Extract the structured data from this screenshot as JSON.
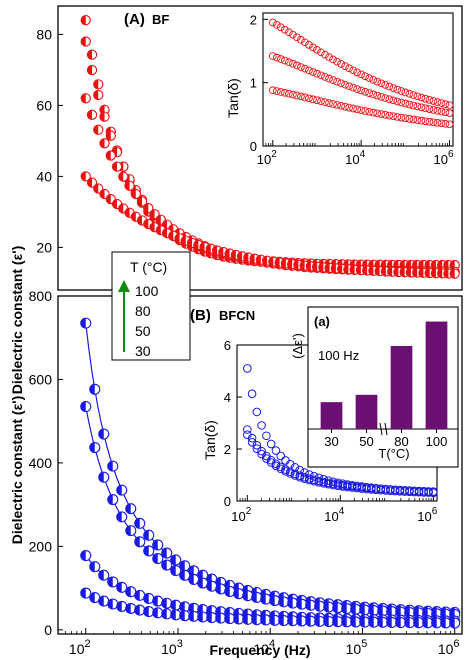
{
  "colors": {
    "red": "#ee1111",
    "blue": "#1a1ae6",
    "purple": "#6b0f73",
    "green": "#0e8a0e",
    "axis": "#000000"
  },
  "labels": {
    "panel_a": "(A)",
    "panel_a_name": "BF",
    "panel_b": "(B)",
    "panel_b_name": "BFCN",
    "ylabel": "Dielectric constant (ε')",
    "xlabel": "Frequency (Hz)",
    "inset_a_ylabel": "Tan(δ)",
    "inset_b_ylabel": "Tan(δ)",
    "bar_panel": "(a)",
    "bar_ylabel": "(Δε')",
    "bar_freq": "100 Hz",
    "bar_xlabel": "T(°C)",
    "legend_title": "T (°C)"
  },
  "legend": {
    "title": "T (°C)",
    "entries": [
      "100",
      "80",
      "50",
      "30"
    ],
    "arrow": "increasing-up"
  },
  "chart_data": [
    {
      "id": "A-main",
      "type": "scatter",
      "title": "(A) BF",
      "xlabel": "",
      "ylabel": "Dielectric constant (ε')",
      "xscale": "log",
      "xlim": [
        50,
        1200000
      ],
      "ylim": [
        8,
        88
      ],
      "yticks": [
        20,
        40,
        60,
        80
      ],
      "marker": "half-filled circle",
      "series": [
        {
          "name": "100",
          "a": 84,
          "b": 15,
          "c": 7.0,
          "xmin": 100,
          "xmax": 1000000
        },
        {
          "name": "80",
          "a": 78,
          "b": 15,
          "c": 6.3,
          "xmin": 100,
          "xmax": 1000000
        },
        {
          "name": "50",
          "a": 62,
          "b": 13,
          "c": 4.6,
          "xmin": 100,
          "xmax": 1000000
        },
        {
          "name": "30",
          "a": 40,
          "b": 12,
          "c": 3.0,
          "xmin": 100,
          "xmax": 1000000
        }
      ]
    },
    {
      "id": "A-inset",
      "type": "scatter",
      "xlabel": "",
      "ylabel": "Tan(δ)",
      "xscale": "log",
      "xlim": [
        60,
        1200000
      ],
      "ylim": [
        0,
        2.1
      ],
      "yticks": [
        0,
        1,
        2
      ],
      "xticks": [
        "10^2",
        "10^4",
        "10^6"
      ],
      "marker": "open circle",
      "series": [
        {
          "a": 1.95,
          "b": 0.05,
          "c": 0.21
        },
        {
          "a": 1.42,
          "b": 0.04,
          "c": 0.18
        },
        {
          "a": 0.88,
          "b": 0.02,
          "c": 0.16
        }
      ]
    },
    {
      "id": "B-main",
      "type": "scatter",
      "title": "(B) BFCN",
      "xlabel": "Frequency (Hz)",
      "ylabel": "Dielectric constant (ε')",
      "xscale": "log",
      "xlim": [
        50,
        1200000
      ],
      "ylim": [
        -10,
        800
      ],
      "yticks": [
        0,
        200,
        400,
        600,
        800
      ],
      "xticks": [
        "10^2",
        "10^3",
        "10^4",
        "10^5",
        "10^6"
      ],
      "marker": "half-filled circle with line",
      "series": [
        {
          "name": "100",
          "a": 735,
          "b": 18,
          "c": 2.8,
          "xmin": 100,
          "xmax": 1000000
        },
        {
          "name": "80",
          "a": 535,
          "b": 16,
          "c": 2.3,
          "xmin": 100,
          "xmax": 1000000
        },
        {
          "name": "50",
          "a": 178,
          "b": 13,
          "c": 1.9,
          "xmin": 100,
          "xmax": 1000000
        },
        {
          "name": "30",
          "a": 88,
          "b": 12,
          "c": 1.6,
          "xmin": 100,
          "xmax": 1000000
        }
      ]
    },
    {
      "id": "B-inset",
      "type": "scatter",
      "xlabel": "",
      "ylabel": "Tan(δ)",
      "xscale": "log",
      "xlim": [
        60,
        1200000
      ],
      "ylim": [
        0,
        6
      ],
      "yticks": [
        0,
        2,
        4,
        6
      ],
      "xticks": [
        "10^2",
        "10^4",
        "10^6"
      ],
      "marker": "open circle",
      "series": [
        {
          "a": 5.1,
          "b": 0.15,
          "c": 2.3
        },
        {
          "a": 2.75,
          "b": 0.2,
          "c": 1.4
        },
        {
          "a": 2.55,
          "b": 0.15,
          "c": 1.3
        }
      ]
    },
    {
      "id": "B-bars",
      "type": "bar",
      "title": "(a) 100 Hz",
      "xlabel": "T(°C)",
      "ylabel": "(Δε')",
      "categories": [
        "30",
        "50",
        "80",
        "100"
      ],
      "values": [
        2.2,
        2.8,
        6.8,
        8.8
      ],
      "ylim": [
        0,
        9.5
      ],
      "axis_break": "between 50 and 80"
    }
  ]
}
